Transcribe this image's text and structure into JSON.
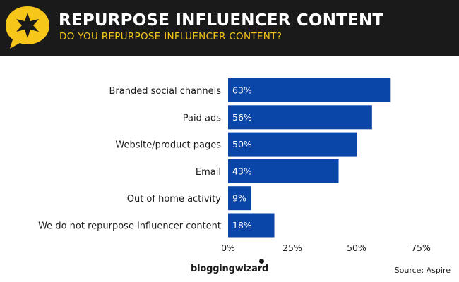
{
  "header": {
    "title": "REPURPOSE INFLUENCER CONTENT",
    "subtitle": "DO YOU REPURPOSE INFLUENCER CONTENT?"
  },
  "brand": {
    "name": "bloggingwizard"
  },
  "source": "Source: Aspire",
  "colors": {
    "bar": "#0a45a8",
    "header_bg": "#1a1a1a",
    "accent": "#f7c61a"
  },
  "chart_data": {
    "type": "bar",
    "orientation": "horizontal",
    "categories": [
      "Branded social channels",
      "Paid ads",
      "Website/product pages",
      "Email",
      "Out of home activity",
      "We do not repurpose influencer content"
    ],
    "values": [
      63,
      56,
      50,
      43,
      9,
      18
    ],
    "value_labels": [
      "63%",
      "56%",
      "50%",
      "43%",
      "9%",
      "18%"
    ],
    "xlim": [
      0,
      75
    ],
    "xticks": [
      0,
      25,
      50,
      75
    ],
    "xtick_labels": [
      "0%",
      "25%",
      "50%",
      "75%"
    ],
    "grid": false
  }
}
